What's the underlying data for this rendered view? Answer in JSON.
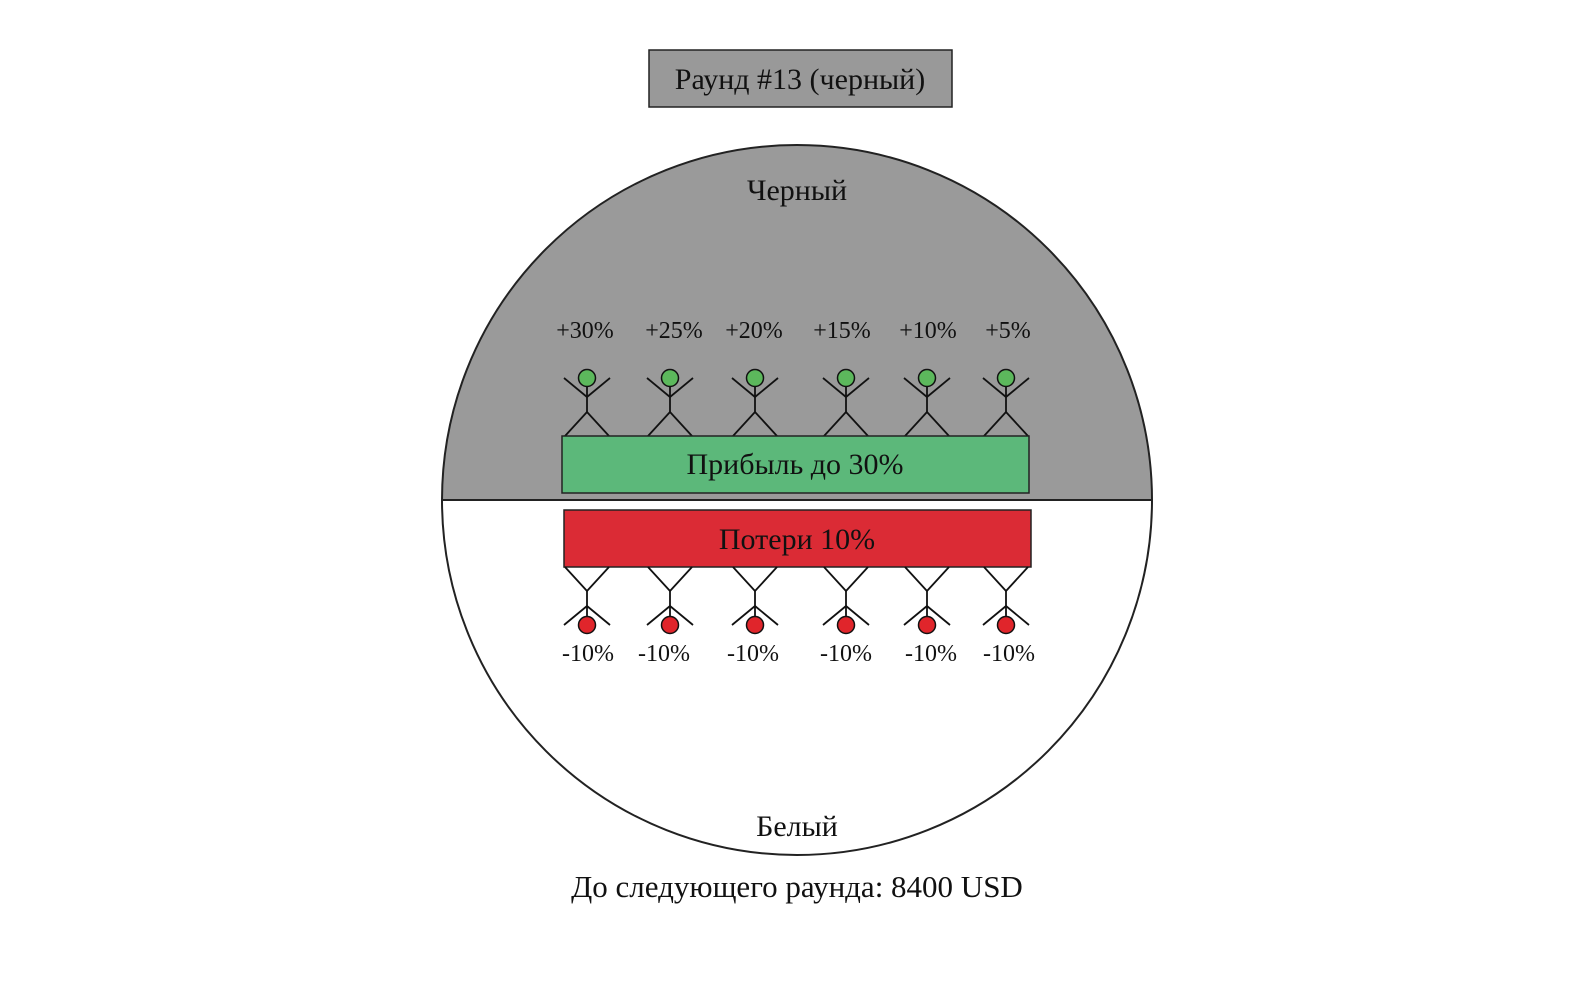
{
  "round_title": "Раунд #13 (черный)",
  "top_half_label": "Черный",
  "bottom_half_label": "Белый",
  "profit_bar_label": "Прибыль до 30%",
  "loss_bar_label": "Потери 10%",
  "next_round_text": "До следующего раунда: 8400 USD",
  "winners": [
    {
      "label": "+30%"
    },
    {
      "label": "+25%"
    },
    {
      "label": "+20%"
    },
    {
      "label": "+15%"
    },
    {
      "label": "+10%"
    },
    {
      "label": "+5%"
    }
  ],
  "losers": [
    {
      "label": "-10%"
    },
    {
      "label": "-10%"
    },
    {
      "label": "-10%"
    },
    {
      "label": "-10%"
    },
    {
      "label": "-10%"
    },
    {
      "label": "-10%"
    }
  ],
  "colors": {
    "top_half": "#9a9a9a",
    "bottom_half": "#ffffff",
    "title_box": "#999999",
    "profit_bar": "#5cb87a",
    "loss_bar": "#db2b35",
    "winner_head": "#5cb85c",
    "loser_head": "#e0252b"
  }
}
